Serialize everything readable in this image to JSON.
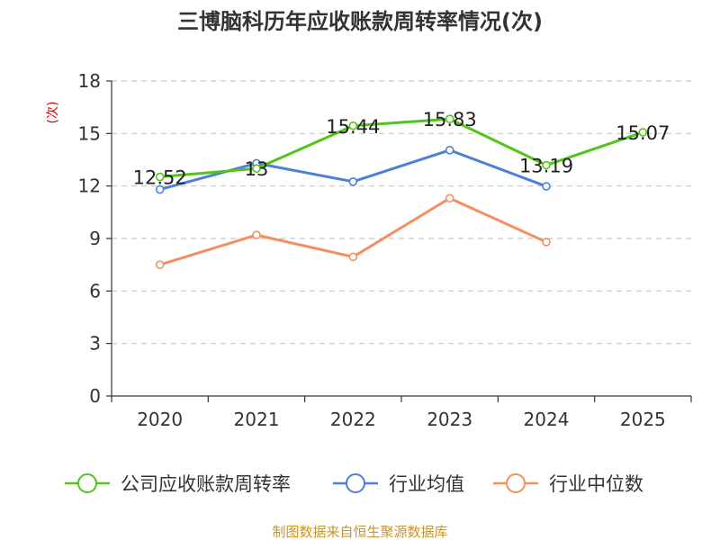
{
  "chart_data": {
    "type": "line",
    "title": "三博脑科历年应收账款周转率情况(次)",
    "ylabel": "(次)",
    "xlabel": "",
    "categories": [
      "2020",
      "2021",
      "2022",
      "2023",
      "2024",
      "2025"
    ],
    "ylim": [
      0,
      18
    ],
    "yticks": [
      0,
      3,
      6,
      9,
      12,
      15,
      18
    ],
    "grid": true,
    "legend_position": "bottom",
    "series": [
      {
        "name": "公司应收账款周转率",
        "color": "#52c41a",
        "values": [
          12.52,
          13,
          15.44,
          15.83,
          13.19,
          15.07
        ],
        "labels": [
          "12.52",
          "13",
          "15.44",
          "15.83",
          "13.19",
          "15.07"
        ]
      },
      {
        "name": "行业均值",
        "color": "#4f7fd8",
        "values": [
          11.8,
          13.3,
          12.25,
          14.05,
          11.98,
          null
        ]
      },
      {
        "name": "行业中位数",
        "color": "#f49060",
        "values": [
          7.5,
          9.2,
          7.95,
          11.3,
          8.8,
          null
        ]
      }
    ],
    "source": "制图数据来自恒生聚源数据库",
    "source_color": "#c8952b",
    "ylabel_color": "#cc0000"
  }
}
